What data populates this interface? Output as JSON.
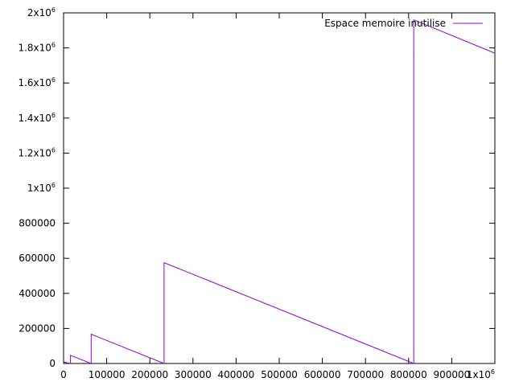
{
  "chart_data": {
    "type": "line",
    "title": "",
    "xlabel": "",
    "ylabel": "",
    "xlim": [
      0,
      1000000
    ],
    "ylim": [
      0,
      2000000
    ],
    "grid": false,
    "legend_position": "top-right",
    "x_ticks": [
      {
        "value": 0,
        "label": "0"
      },
      {
        "value": 100000,
        "label": "100000"
      },
      {
        "value": 200000,
        "label": "200000"
      },
      {
        "value": 300000,
        "label": "300000"
      },
      {
        "value": 400000,
        "label": "400000"
      },
      {
        "value": 500000,
        "label": "500000"
      },
      {
        "value": 600000,
        "label": "600000"
      },
      {
        "value": 700000,
        "label": "700000"
      },
      {
        "value": 800000,
        "label": "800000"
      },
      {
        "value": 900000,
        "label": "900000"
      },
      {
        "value": 1000000,
        "label": "1x10",
        "sup": "6"
      }
    ],
    "y_ticks": [
      {
        "value": 0,
        "label": "0"
      },
      {
        "value": 200000,
        "label": "200000"
      },
      {
        "value": 400000,
        "label": "400000"
      },
      {
        "value": 600000,
        "label": "600000"
      },
      {
        "value": 800000,
        "label": "800000"
      },
      {
        "value": 1000000,
        "label": "1x10",
        "sup": "6"
      },
      {
        "value": 1200000,
        "label": "1.2x10",
        "sup": "6"
      },
      {
        "value": 1400000,
        "label": "1.4x10",
        "sup": "6"
      },
      {
        "value": 1600000,
        "label": "1.6x10",
        "sup": "6"
      },
      {
        "value": 1800000,
        "label": "1.8x10",
        "sup": "6"
      },
      {
        "value": 2000000,
        "label": "2x10",
        "sup": "6"
      }
    ],
    "series": [
      {
        "name": "Espace memoire inutilise",
        "color": "#9400d3",
        "x": [
          0,
          16000,
          16000,
          64000,
          64000,
          233000,
          233000,
          812000,
          812000,
          1000000
        ],
        "y": [
          8000,
          0,
          47000,
          0,
          167000,
          0,
          575000,
          0,
          1960000,
          1770000
        ]
      }
    ]
  }
}
